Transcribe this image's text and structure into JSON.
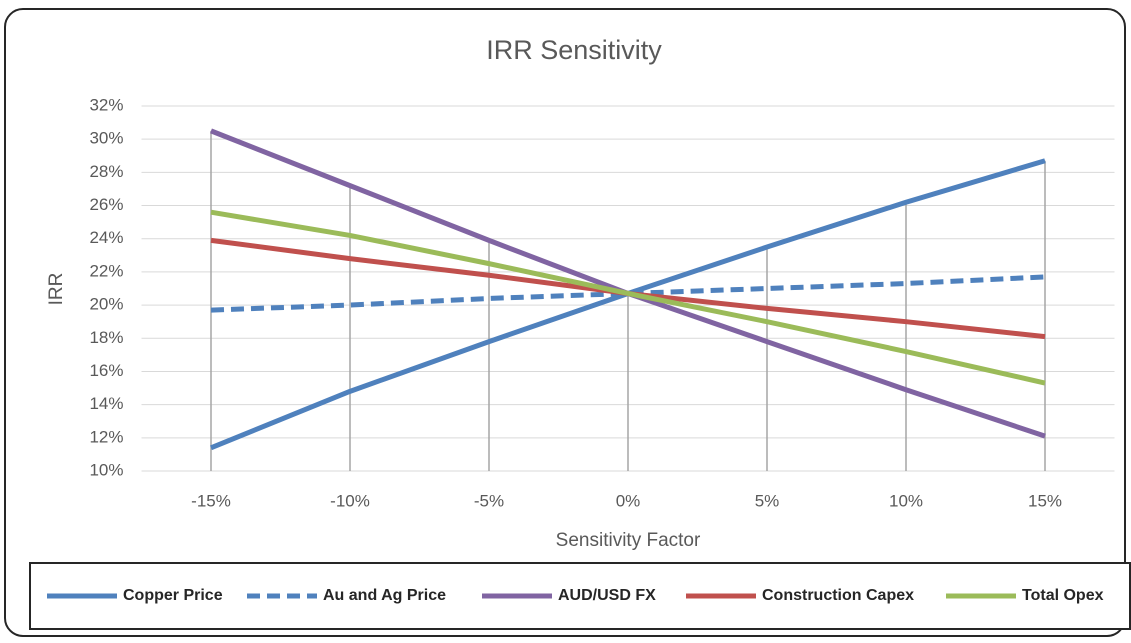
{
  "chart_data": {
    "type": "line",
    "title": "IRR Sensitivity",
    "x_label": "Sensitivity Factor",
    "y_label": "IRR",
    "categories": [
      "-15%",
      "-10%",
      "-5%",
      "0%",
      "5%",
      "10%",
      "15%"
    ],
    "series": [
      {
        "name": "Copper Price",
        "color": "#4f81bd",
        "dashed": false,
        "values": [
          11.4,
          14.8,
          17.8,
          20.7,
          23.5,
          26.2,
          28.7
        ]
      },
      {
        "name": "Au and Ag Price",
        "color": "#4f81bd",
        "dashed": true,
        "values": [
          19.7,
          20.0,
          20.4,
          20.7,
          21.0,
          21.3,
          21.7
        ]
      },
      {
        "name": "AUD/USD FX",
        "color": "#8064a2",
        "dashed": false,
        "values": [
          30.5,
          27.2,
          23.9,
          20.7,
          17.8,
          14.9,
          12.1
        ]
      },
      {
        "name": "Construction Capex",
        "color": "#c0504d",
        "dashed": false,
        "values": [
          23.9,
          22.8,
          21.8,
          20.7,
          19.8,
          19.0,
          18.1
        ]
      },
      {
        "name": "Total Opex",
        "color": "#9bbb59",
        "dashed": false,
        "values": [
          25.6,
          24.2,
          22.5,
          20.7,
          19.0,
          17.2,
          15.3
        ]
      }
    ],
    "ylim": [
      10,
      32
    ],
    "yticks": [
      {
        "value": 10,
        "label": "10%"
      },
      {
        "value": 12,
        "label": "12%"
      },
      {
        "value": 14,
        "label": "14%"
      },
      {
        "value": 16,
        "label": "16%"
      },
      {
        "value": 18,
        "label": "18%"
      },
      {
        "value": 20,
        "label": "20%"
      },
      {
        "value": 22,
        "label": "22%"
      },
      {
        "value": 24,
        "label": "24%"
      },
      {
        "value": 26,
        "label": "26%"
      },
      {
        "value": 28,
        "label": "28%"
      },
      {
        "value": 30,
        "label": "30%"
      },
      {
        "value": 32,
        "label": "32%"
      }
    ],
    "grid": true,
    "drop_lines": true,
    "legend": "bottom"
  }
}
